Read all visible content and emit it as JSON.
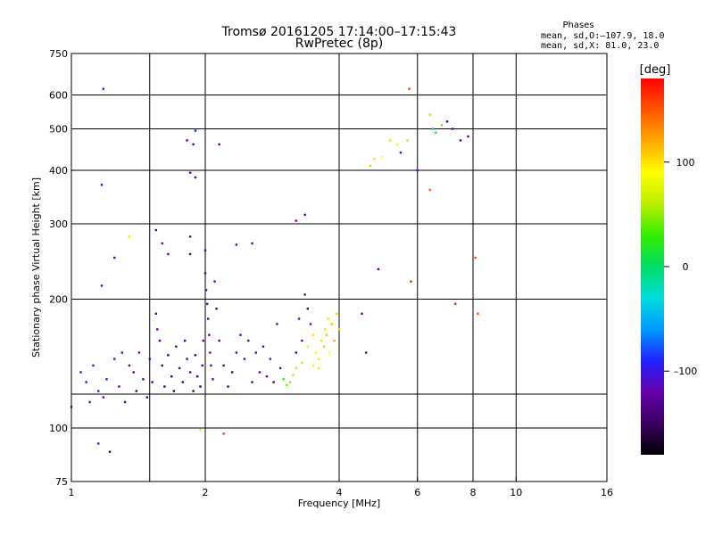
{
  "chart_data": {
    "type": "scatter",
    "title": "Tromsø 20161205 17:14:00–17:15:43",
    "subtitle": "RwPretec (8p)",
    "xlabel": "Frequency [MHz]",
    "ylabel": "Stationary phase Virtual Height [km]",
    "x_scale": "log",
    "y_scale": "log",
    "xlim": [
      1,
      16
    ],
    "ylim": [
      75,
      750
    ],
    "x_ticks": [
      1,
      2,
      4,
      6,
      8,
      10,
      16
    ],
    "x_tick_labels": [
      "1",
      "2",
      "4",
      "6",
      "8",
      "10",
      "16"
    ],
    "x_grid": [
      1.5,
      2,
      4,
      6,
      8,
      10
    ],
    "y_ticks": [
      75,
      100,
      200,
      300,
      400,
      500,
      600,
      750
    ],
    "y_tick_labels": [
      "75",
      "100",
      "200",
      "300",
      "400",
      "500",
      "600",
      "750"
    ],
    "y_grid": [
      100,
      120,
      200,
      300,
      400,
      500,
      600
    ],
    "grid": true,
    "stats_title": "Phases",
    "stats_lines": [
      "mean, sd,O:–107.9, 18.0",
      "mean, sd,X:  81.0, 23.0"
    ],
    "colorbar": {
      "label": "[deg]",
      "range": [
        -180,
        180
      ],
      "ticks": [
        -100,
        0,
        100
      ],
      "tick_labels": [
        "–100",
        "0",
        "100"
      ],
      "colors": [
        "#000000",
        "#3a0060",
        "#6600aa",
        "#2222ff",
        "#0099ff",
        "#00dddd",
        "#00dd66",
        "#33ee00",
        "#bbee00",
        "#ffff00",
        "#ffaa00",
        "#ff5500",
        "#ff0000"
      ]
    },
    "points": [
      [
        1.0,
        112,
        -110
      ],
      [
        1.05,
        135,
        -115
      ],
      [
        1.08,
        128,
        -110
      ],
      [
        1.1,
        115,
        -120
      ],
      [
        1.12,
        140,
        -100
      ],
      [
        1.15,
        122,
        -120
      ],
      [
        1.18,
        118,
        -125
      ],
      [
        1.2,
        130,
        -105
      ],
      [
        1.25,
        145,
        -115
      ],
      [
        1.28,
        125,
        -130
      ],
      [
        1.3,
        150,
        -115
      ],
      [
        1.32,
        115,
        -140
      ],
      [
        1.35,
        140,
        -125
      ],
      [
        1.38,
        135,
        -130
      ],
      [
        1.4,
        122,
        -140
      ],
      [
        1.42,
        150,
        -120
      ],
      [
        1.45,
        130,
        -130
      ],
      [
        1.48,
        118,
        -145
      ],
      [
        1.5,
        145,
        -125
      ],
      [
        1.52,
        128,
        -140
      ],
      [
        1.55,
        185,
        -130
      ],
      [
        1.56,
        170,
        -125
      ],
      [
        1.58,
        160,
        -130
      ],
      [
        1.6,
        140,
        -140
      ],
      [
        1.62,
        125,
        -145
      ],
      [
        1.65,
        148,
        -135
      ],
      [
        1.68,
        132,
        -140
      ],
      [
        1.7,
        122,
        -150
      ],
      [
        1.72,
        155,
        -130
      ],
      [
        1.75,
        138,
        -135
      ],
      [
        1.78,
        128,
        -145
      ],
      [
        1.8,
        160,
        -130
      ],
      [
        1.82,
        145,
        -140
      ],
      [
        1.85,
        135,
        -130
      ],
      [
        1.88,
        122,
        -150
      ],
      [
        1.9,
        148,
        -135
      ],
      [
        1.92,
        132,
        -140
      ],
      [
        1.95,
        125,
        -145
      ],
      [
        1.97,
        140,
        -130
      ],
      [
        1.98,
        160,
        -125
      ],
      [
        2.0,
        260,
        -130
      ],
      [
        2.0,
        230,
        -125
      ],
      [
        2.01,
        210,
        -130
      ],
      [
        2.02,
        195,
        -120
      ],
      [
        2.03,
        180,
        -130
      ],
      [
        2.04,
        165,
        -125
      ],
      [
        2.05,
        150,
        -120
      ],
      [
        2.06,
        140,
        -115
      ],
      [
        2.08,
        130,
        -120
      ],
      [
        2.1,
        220,
        -120
      ],
      [
        2.12,
        190,
        -130
      ],
      [
        2.15,
        160,
        -125
      ],
      [
        2.2,
        140,
        -130
      ],
      [
        2.25,
        125,
        -140
      ],
      [
        2.3,
        135,
        -135
      ],
      [
        2.35,
        150,
        -120
      ],
      [
        2.4,
        165,
        -115
      ],
      [
        2.45,
        145,
        -125
      ],
      [
        2.5,
        160,
        -100
      ],
      [
        2.55,
        128,
        -130
      ],
      [
        2.6,
        150,
        -110
      ],
      [
        2.65,
        135,
        -120
      ],
      [
        2.7,
        155,
        -100
      ],
      [
        2.75,
        132,
        -130
      ],
      [
        2.8,
        145,
        -90
      ],
      [
        2.85,
        128,
        -140
      ],
      [
        2.9,
        175,
        -100
      ],
      [
        2.95,
        138,
        -125
      ],
      [
        3.0,
        130,
        30
      ],
      [
        3.05,
        126,
        40
      ],
      [
        3.1,
        128,
        50
      ],
      [
        3.15,
        133,
        60
      ],
      [
        3.2,
        138,
        70
      ],
      [
        3.2,
        150,
        -130
      ],
      [
        3.25,
        180,
        -110
      ],
      [
        3.3,
        160,
        -120
      ],
      [
        3.35,
        205,
        -125
      ],
      [
        3.4,
        190,
        -130
      ],
      [
        3.45,
        175,
        -120
      ],
      [
        3.5,
        140,
        80
      ],
      [
        3.55,
        150,
        90
      ],
      [
        3.6,
        145,
        95
      ],
      [
        3.65,
        160,
        100
      ],
      [
        3.7,
        155,
        110
      ],
      [
        3.72,
        170,
        105
      ],
      [
        3.75,
        165,
        115
      ],
      [
        3.78,
        180,
        100
      ],
      [
        3.8,
        150,
        90
      ],
      [
        3.85,
        175,
        110
      ],
      [
        3.9,
        160,
        120
      ],
      [
        3.95,
        185,
        105
      ],
      [
        4.0,
        170,
        110
      ],
      [
        3.4,
        155,
        80
      ],
      [
        3.6,
        138,
        70
      ],
      [
        3.3,
        142,
        60
      ],
      [
        3.5,
        165,
        100
      ],
      [
        1.6,
        270,
        -125
      ],
      [
        1.55,
        290,
        -130
      ],
      [
        1.65,
        255,
        -125
      ],
      [
        1.85,
        255,
        -125
      ],
      [
        2.35,
        268,
        -125
      ],
      [
        2.55,
        270,
        -125
      ],
      [
        1.85,
        280,
        -130
      ],
      [
        3.2,
        305,
        -120
      ],
      [
        3.35,
        315,
        -125
      ],
      [
        1.18,
        620,
        -100
      ],
      [
        1.17,
        370,
        -110
      ],
      [
        1.17,
        215,
        -110
      ],
      [
        1.25,
        250,
        -130
      ],
      [
        1.35,
        280,
        100
      ],
      [
        1.15,
        92,
        -100
      ],
      [
        1.22,
        88,
        -140
      ],
      [
        1.9,
        495,
        -90
      ],
      [
        1.82,
        470,
        -130
      ],
      [
        1.88,
        460,
        -125
      ],
      [
        2.15,
        460,
        -130
      ],
      [
        1.85,
        395,
        -130
      ],
      [
        1.9,
        385,
        -125
      ],
      [
        1.95,
        99,
        70
      ],
      [
        2.2,
        97,
        160
      ],
      [
        4.7,
        410,
        110
      ],
      [
        4.8,
        425,
        100
      ],
      [
        5.0,
        430,
        90
      ],
      [
        5.2,
        470,
        100
      ],
      [
        5.4,
        460,
        80
      ],
      [
        5.5,
        440,
        -110
      ],
      [
        5.7,
        470,
        60
      ],
      [
        5.75,
        620,
        160
      ],
      [
        5.8,
        220,
        170
      ],
      [
        6.0,
        400,
        -120
      ],
      [
        6.4,
        540,
        60
      ],
      [
        6.5,
        500,
        -40
      ],
      [
        6.6,
        490,
        20
      ],
      [
        6.8,
        510,
        40
      ],
      [
        7.0,
        520,
        -130
      ],
      [
        7.2,
        500,
        -125
      ],
      [
        7.5,
        470,
        -130
      ],
      [
        7.8,
        480,
        -125
      ],
      [
        6.4,
        360,
        150
      ],
      [
        7.3,
        195,
        170
      ],
      [
        8.1,
        250,
        160
      ],
      [
        8.2,
        185,
        150
      ],
      [
        4.9,
        235,
        -130
      ],
      [
        4.5,
        185,
        -120
      ],
      [
        4.6,
        150,
        -130
      ]
    ]
  }
}
